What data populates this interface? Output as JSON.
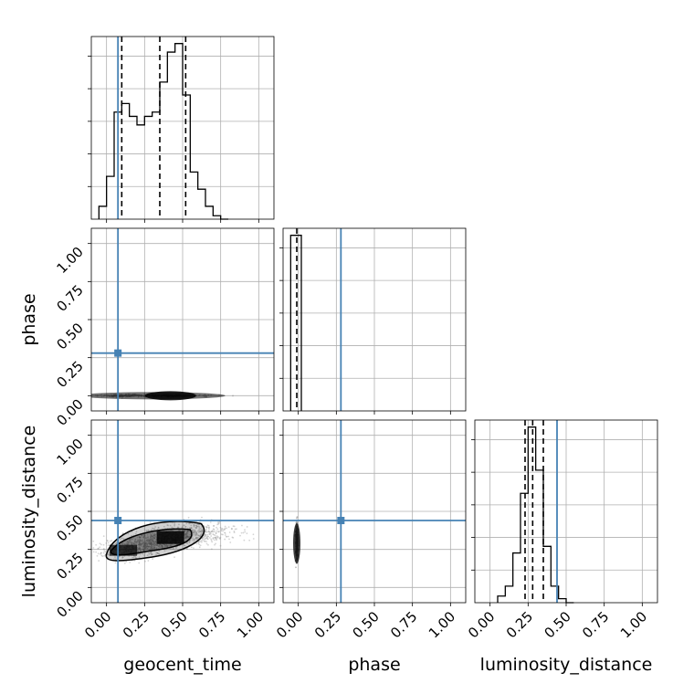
{
  "chart_data": {
    "type": "corner",
    "parameters": [
      "geocent_time",
      "phase",
      "luminosity_distance"
    ],
    "ticks": [
      0.0,
      0.25,
      0.5,
      0.75,
      1.0
    ],
    "tick_labels": [
      "0.00",
      "0.25",
      "0.50",
      "0.75",
      "1.00"
    ],
    "axis_range": [
      -0.1,
      1.1
    ],
    "grid": true,
    "truth_color": "#4682b4",
    "truths": {
      "geocent_time": 0.075,
      "phase": 0.28,
      "luminosity_distance": 0.44
    },
    "quantiles": {
      "geocent_time": [
        0.1,
        0.35,
        0.52
      ],
      "phase": [
        -0.01
      ],
      "luminosity_distance": [
        0.23,
        0.28,
        0.35
      ]
    },
    "histograms": {
      "geocent_time": {
        "bin_edges": [
          -0.05,
          0.0,
          0.05,
          0.1,
          0.15,
          0.2,
          0.25,
          0.3,
          0.35,
          0.4,
          0.45,
          0.5,
          0.55,
          0.6,
          0.65,
          0.7,
          0.75,
          0.8
        ],
        "counts": [
          0.3,
          1.0,
          2.5,
          2.7,
          2.4,
          2.2,
          2.4,
          2.5,
          3.2,
          3.9,
          4.1,
          2.9,
          1.1,
          0.7,
          0.3,
          0.08,
          0.0
        ]
      },
      "phase": {
        "bin_edges": [
          -0.05,
          0.0,
          0.02
        ],
        "counts": [
          4.6,
          4.6
        ]
      },
      "luminosity_distance": {
        "bin_edges": [
          0.05,
          0.1,
          0.15,
          0.2,
          0.25,
          0.3,
          0.35,
          0.4,
          0.45,
          0.5,
          0.55
        ],
        "counts": [
          0.2,
          0.5,
          1.5,
          3.3,
          5.3,
          4.0,
          1.7,
          0.5,
          0.12,
          0.0
        ]
      }
    }
  }
}
